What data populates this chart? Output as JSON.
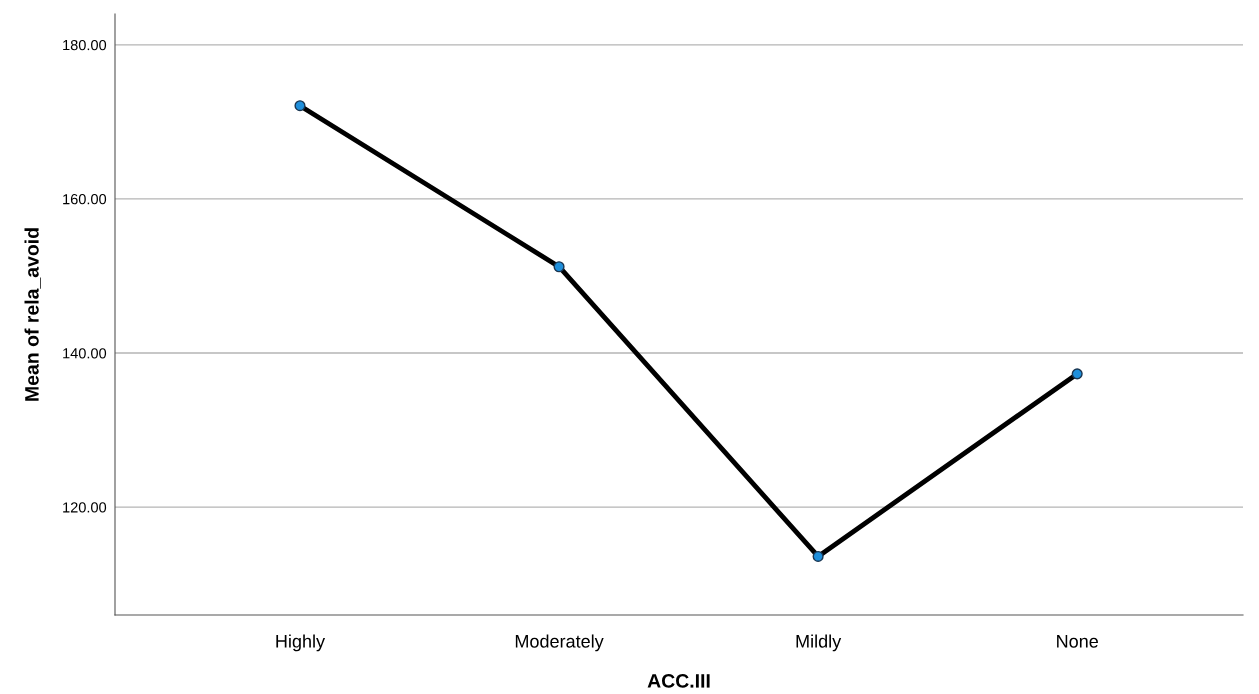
{
  "chart_data": {
    "type": "line",
    "xlabel": "ACC.III",
    "ylabel": "Mean of rela_avoid",
    "categories": [
      "Highly",
      "Moderately",
      "Mildly",
      "None"
    ],
    "series": [
      {
        "color": "#000000",
        "values": [
          172.1,
          151.2,
          113.6,
          137.3
        ]
      }
    ],
    "marker": "circle",
    "line_style": "solid",
    "ylim": [
      106,
      184
    ],
    "yticks": [
      {
        "value": 120,
        "label": "120.00"
      },
      {
        "value": 140,
        "label": "140.00"
      },
      {
        "value": 160,
        "label": "160.00"
      },
      {
        "value": 180,
        "label": "180.00"
      }
    ],
    "grid": "y"
  }
}
